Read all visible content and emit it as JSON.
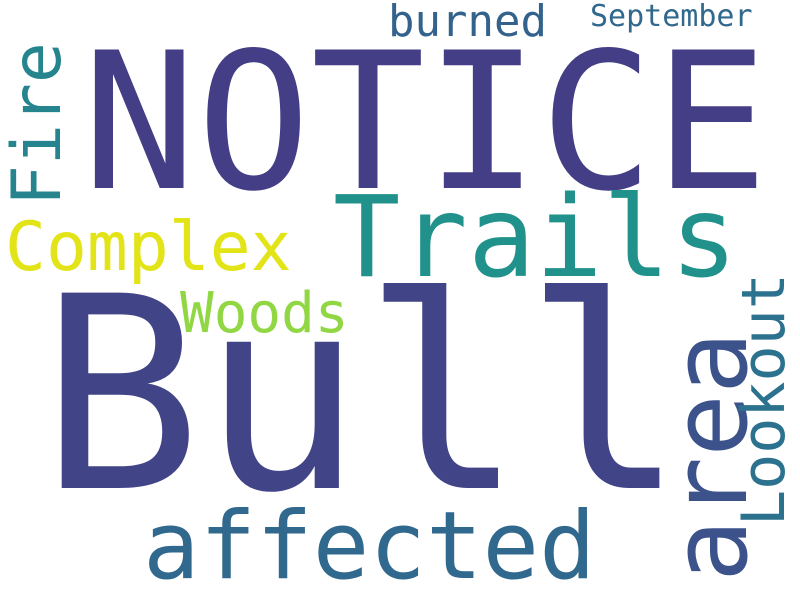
{
  "cloud": {
    "words": {
      "bull": {
        "text": "Bull",
        "color": "#414487"
      },
      "notice": {
        "text": "NOTICE",
        "color": "#433e85"
      },
      "trails": {
        "text": "Trails",
        "color": "#21918c"
      },
      "affected": {
        "text": "affected",
        "color": "#31688e"
      },
      "area": {
        "text": "area",
        "color": "#3b528b"
      },
      "complex": {
        "text": "Complex",
        "color": "#e2e418"
      },
      "fire": {
        "text": "Fire",
        "color": "#25848e"
      },
      "lookout": {
        "text": "Lookout",
        "color": "#2c728e"
      },
      "woods": {
        "text": "Woods",
        "color": "#90d743"
      },
      "burned": {
        "text": "burned",
        "color": "#33638d"
      },
      "september": {
        "text": "September",
        "color": "#31688e"
      }
    }
  }
}
